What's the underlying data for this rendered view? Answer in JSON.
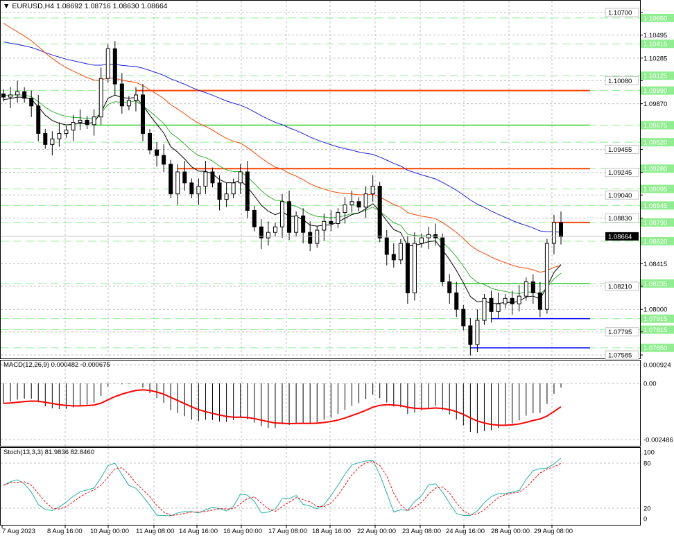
{
  "header": {
    "symbol": "EURUSD,H4",
    "ohlc": "1.08692 1.08716 1.08630 1.08664"
  },
  "macd": {
    "label": "MACD(12,26,9) 0.000482 -0.000675",
    "axis": [
      "0.000924",
      "0.00",
      "-0.002486"
    ]
  },
  "stoch": {
    "label": "Stoch(13,3,3) 81.9836 82.8460",
    "axis": [
      "100",
      "80",
      "20",
      "0"
    ]
  },
  "price_axis": {
    "ticks": [
      "1.10700",
      "1.10495",
      "1.10285",
      "1.10080",
      "1.09870",
      "1.09455",
      "1.09245",
      "1.09040",
      "1.08830",
      "1.08415",
      "1.08210",
      "1.08000",
      "1.07795",
      "1.07585"
    ],
    "levels": [
      "1.10650",
      "1.10415",
      "1.10125",
      "1.09990",
      "1.09675",
      "1.09520",
      "1.09280",
      "1.09095",
      "1.08945",
      "1.08790",
      "1.08620",
      "1.08235",
      "1.07915",
      "1.07815",
      "1.07650"
    ],
    "current": "1.08664"
  },
  "time_axis": [
    "7 Aug 2023",
    "8 Aug 16:00",
    "10 Aug 00:00",
    "11 Aug 08:00",
    "14 Aug 16:00",
    "16 Aug 00:00",
    "17 Aug 08:00",
    "18 Aug 16:00",
    "22 Aug 00:00",
    "23 Aug 08:00",
    "24 Aug 16:00",
    "28 Aug 00:00",
    "29 Aug 08:00"
  ],
  "colors": {
    "level": "#90ee90",
    "resistance": "#ff4500",
    "support_green": "#32cd32",
    "support_blue": "#0000ff",
    "ma_long": "#2020e0",
    "ma_mid": "#ff4500",
    "ma_short": "#32b432",
    "ma_fast": "#000000",
    "macd_signal": "#ff0000",
    "stoch_main": "#20b2aa",
    "stoch_signal": "#ff0000"
  },
  "chart_data": {
    "type": "candlestick",
    "symbol": "EURUSD",
    "timeframe": "H4",
    "ylim": [
      1.07585,
      1.107
    ],
    "closes": [
      1.0993,
      1.0995,
      1.0998,
      1.0992,
      1.0985,
      1.096,
      1.095,
      1.0955,
      1.096,
      1.0963,
      1.097,
      1.0972,
      1.0968,
      1.0975,
      1.101,
      1.1037,
      1.1005,
      1.0985,
      1.099,
      1.0995,
      1.096,
      1.0945,
      1.094,
      1.0932,
      1.0905,
      1.0925,
      1.0915,
      1.0905,
      1.0912,
      1.0925,
      1.0915,
      1.09,
      1.0905,
      1.0915,
      1.0925,
      1.089,
      1.0875,
      1.0865,
      1.087,
      1.0875,
      1.0898,
      1.087,
      1.0885,
      1.087,
      1.086,
      1.0872,
      1.088,
      1.0878,
      1.0888,
      1.0895,
      1.0898,
      1.0893,
      1.0905,
      1.0912,
      1.0865,
      1.085,
      1.0845,
      1.086,
      1.0815,
      1.086,
      1.0865,
      1.0868,
      1.0865,
      1.0825,
      1.0815,
      1.08,
      1.0785,
      1.0768,
      1.079,
      1.081,
      1.0798,
      1.0805,
      1.081,
      1.0805,
      1.0812,
      1.0825,
      1.0815,
      1.08,
      1.086,
      1.0879,
      1.0866
    ],
    "hlines": [
      {
        "price": 1.0999,
        "color": "resistance",
        "from_bar": 19
      },
      {
        "price": 1.0928,
        "color": "resistance",
        "from_bar": 25
      },
      {
        "price": 1.09675,
        "color": "support_green",
        "from_bar": 13
      },
      {
        "price": 1.0879,
        "color": "resistance",
        "from_bar": 79
      },
      {
        "price": 1.08235,
        "color": "support_green",
        "from_bar": 64
      },
      {
        "price": 1.07915,
        "color": "support_blue",
        "from_bar": 70
      },
      {
        "price": 1.0765,
        "color": "support_blue",
        "from_bar": 67
      }
    ]
  }
}
